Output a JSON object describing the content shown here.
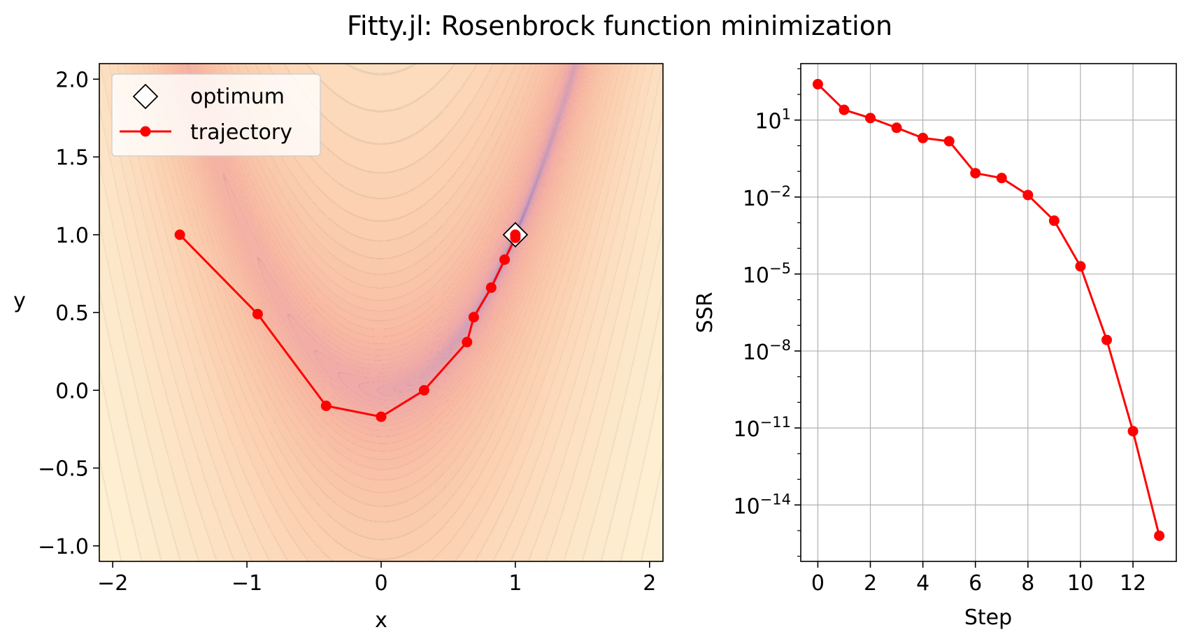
{
  "figure": {
    "title": "Fitty.jl: Rosenbrock function minimization"
  },
  "colors": {
    "trajectory": "#ff0000",
    "optimum_face": "#ffffff",
    "optimum_edge": "#000000",
    "grid": "#b0b0b0",
    "colormap": "magma (translucent), low=purple, high=pale yellow"
  },
  "chart_data": [
    {
      "type": "contour-with-line",
      "function": "Rosenbrock f(x,y) = (1-x)^2 + 100(y-x^2)^2",
      "xlabel": "x",
      "ylabel": "y",
      "xlim": [
        -2.1,
        2.1
      ],
      "ylim": [
        -1.1,
        2.1
      ],
      "xticks": [
        -2,
        -1,
        0,
        1,
        2
      ],
      "xtick_labels": [
        "−2",
        "−1",
        "0",
        "1",
        "2"
      ],
      "yticks": [
        2.0,
        1.5,
        1.0,
        0.5,
        0.0,
        -0.5,
        -1.0
      ],
      "ytick_labels": [
        "2.0",
        "1.5",
        "1.0",
        "0.5",
        "0.0",
        "−0.5",
        "−1.0"
      ],
      "grid": false,
      "legend": {
        "placement": "upper-left",
        "entries": [
          "optimum",
          "trajectory"
        ]
      },
      "optimum": {
        "name": "optimum",
        "x": 1.0,
        "y": 1.0,
        "marker": "diamond"
      },
      "trajectory": {
        "name": "trajectory",
        "x": [
          -1.5,
          -0.92,
          -0.41,
          0.0,
          0.32,
          0.64,
          0.69,
          0.82,
          0.92,
          1.0,
          1.0
        ],
        "y": [
          1.0,
          0.49,
          -0.1,
          -0.17,
          0.0,
          0.31,
          0.47,
          0.66,
          0.84,
          0.98,
          1.0
        ]
      }
    },
    {
      "type": "line",
      "xlabel": "Step",
      "ylabel": "SSR",
      "yscale": "log",
      "xlim": [
        -0.65,
        13.65
      ],
      "ylim_log10": [
        -16.2,
        3.2
      ],
      "xticks": [
        0,
        2,
        4,
        6,
        8,
        10,
        12
      ],
      "yticks_exponent": [
        1,
        -2,
        -5,
        -8,
        -11,
        -14
      ],
      "ytick_labels": [
        {
          "base": "10",
          "exp": "1"
        },
        {
          "base": "10",
          "exp": "−2"
        },
        {
          "base": "10",
          "exp": "−5"
        },
        {
          "base": "10",
          "exp": "−8"
        },
        {
          "base": "10",
          "exp": "−11"
        },
        {
          "base": "10",
          "exp": "−14"
        }
      ],
      "grid": true,
      "series": [
        {
          "x": [
            0,
            1,
            2,
            3,
            4,
            5,
            6,
            7,
            8,
            9,
            10,
            11,
            12,
            13
          ],
          "values": [
            250,
            25,
            12,
            5,
            2,
            1.5,
            0.085,
            0.055,
            0.012,
            0.0012,
            2e-05,
            2.7e-08,
            7.5e-12,
            6.3e-16
          ]
        }
      ]
    }
  ]
}
